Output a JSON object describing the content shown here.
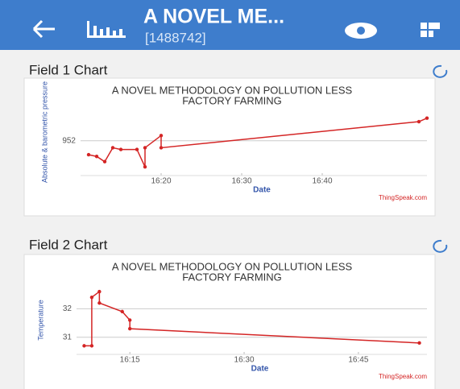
{
  "header": {
    "title": "A NOVEL ME...",
    "subtitle": "[1488742]"
  },
  "panels": [
    {
      "title": "Field 1 Chart",
      "chart": {
        "type": "line",
        "title": [
          "A NOVEL METHODOLOGY ON POLLUTION LESS",
          "FACTORY FARMING"
        ],
        "y_label": "Absolute & barometric pressure",
        "x_label": "Date",
        "credit": "ThingSpeak.com",
        "x": [
          "16:11",
          "16:12",
          "16:13",
          "16:14",
          "16:15",
          "16:17",
          "16:18",
          "16:18",
          "16:20",
          "16:20",
          "16:52",
          "16:53"
        ],
        "series": [
          {
            "color": "#d42525",
            "values": [
              951.2,
              951.1,
              950.8,
              951.6,
              951.5,
              951.5,
              950.5,
              951.6,
              952.3,
              951.6,
              953.1,
              953.3
            ]
          }
        ],
        "xlim": [
          "16:10",
          "16:53"
        ],
        "xticks": [
          "16:20",
          "16:30",
          "16:40"
        ],
        "ylim": [
          950,
          955
        ],
        "yticks": [
          952
        ],
        "grid": true
      }
    },
    {
      "title": "Field 2 Chart",
      "chart": {
        "type": "line",
        "title": [
          "A NOVEL METHODOLOGY ON POLLUTION LESS",
          "FACTORY FARMING"
        ],
        "y_label": "Temperature",
        "x_label": "Date",
        "credit": "ThingSpeak.com",
        "x": [
          "16:09",
          "16:10",
          "16:10",
          "16:11",
          "16:11",
          "16:14",
          "16:15",
          "16:15",
          "16:53"
        ],
        "series": [
          {
            "color": "#d42525",
            "values": [
              30.7,
              30.7,
              32.4,
              32.6,
              32.2,
              31.9,
              31.6,
              31.3,
              30.8
            ]
          }
        ],
        "xlim": [
          "16:08",
          "16:54"
        ],
        "xticks": [
          "16:15",
          "16:30",
          "16:45"
        ],
        "ylim": [
          30.4,
          32.8
        ],
        "yticks": [
          31,
          32
        ],
        "grid": true
      }
    }
  ]
}
